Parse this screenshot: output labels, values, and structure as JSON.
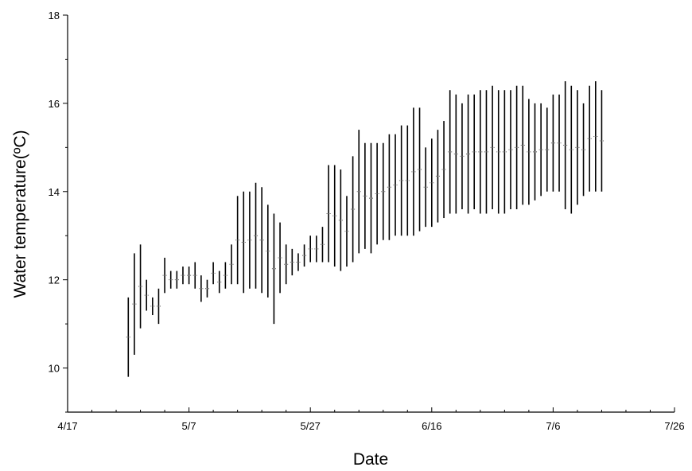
{
  "chart_data": {
    "type": "line",
    "title": "",
    "xlabel": "Date",
    "ylabel": "Water temperature(ºC)",
    "xlim": [
      "4/17",
      "7/26"
    ],
    "ylim": [
      9,
      18
    ],
    "x_ticks": [
      "4/17",
      "5/7",
      "5/27",
      "6/16",
      "7/6",
      "7/26"
    ],
    "y_ticks": [
      10,
      12,
      14,
      16,
      18
    ],
    "grid": false,
    "legend": "none",
    "line_color": "#000000",
    "series": [
      {
        "x": [
          "4/27",
          "4/28",
          "4/29",
          "4/30",
          "5/1",
          "5/2",
          "5/3",
          "5/4",
          "5/5",
          "5/6",
          "5/7",
          "5/8",
          "5/9",
          "5/10",
          "5/11",
          "5/12",
          "5/13",
          "5/14",
          "5/15",
          "5/16",
          "5/17",
          "5/18",
          "5/19",
          "5/20",
          "5/21",
          "5/22",
          "5/23",
          "5/24",
          "5/25",
          "5/26",
          "5/27",
          "5/28",
          "5/29",
          "5/30",
          "5/31",
          "6/1",
          "6/2",
          "6/3",
          "6/4",
          "6/5",
          "6/6",
          "6/7",
          "6/8",
          "6/9",
          "6/10",
          "6/11",
          "6/12",
          "6/13",
          "6/14",
          "6/15",
          "6/16",
          "6/17",
          "6/18",
          "6/19",
          "6/20",
          "6/21",
          "6/22",
          "6/23",
          "6/24",
          "6/25",
          "6/26",
          "6/27",
          "6/28",
          "6/29",
          "6/30",
          "7/1",
          "7/2",
          "7/3",
          "7/4",
          "7/5",
          "7/6",
          "7/7",
          "7/8",
          "7/9",
          "7/10",
          "7/11",
          "7/12",
          "7/13",
          "7/14"
        ],
        "min": [
          9.8,
          10.3,
          10.9,
          11.3,
          11.2,
          11.0,
          11.7,
          11.8,
          11.8,
          11.9,
          11.9,
          11.8,
          11.5,
          11.6,
          11.9,
          11.7,
          11.8,
          11.9,
          11.9,
          11.7,
          11.8,
          11.8,
          11.7,
          11.6,
          11.0,
          11.7,
          11.9,
          12.1,
          12.2,
          12.3,
          12.4,
          12.4,
          12.4,
          12.4,
          12.3,
          12.2,
          12.3,
          12.4,
          12.6,
          12.7,
          12.6,
          12.8,
          12.9,
          12.9,
          13.0,
          13.0,
          13.0,
          13.0,
          13.1,
          13.2,
          13.2,
          13.3,
          13.4,
          13.5,
          13.5,
          13.6,
          13.5,
          13.6,
          13.5,
          13.5,
          13.6,
          13.5,
          13.5,
          13.6,
          13.6,
          13.7,
          13.7,
          13.8,
          13.9,
          14.0,
          14.0,
          14.0,
          13.6,
          13.5,
          13.7,
          13.9,
          14.0,
          14.0,
          14.0
        ],
        "max": [
          11.6,
          12.6,
          12.8,
          12.0,
          11.6,
          11.8,
          12.5,
          12.2,
          12.2,
          12.3,
          12.3,
          12.4,
          12.1,
          12.0,
          12.4,
          12.2,
          12.4,
          12.8,
          13.9,
          14.0,
          14.0,
          14.2,
          14.1,
          13.7,
          13.5,
          13.3,
          12.8,
          12.7,
          12.6,
          12.8,
          13.0,
          13.0,
          13.2,
          14.6,
          14.6,
          14.5,
          13.9,
          14.8,
          15.4,
          15.1,
          15.1,
          15.1,
          15.1,
          15.3,
          15.3,
          15.5,
          15.5,
          15.9,
          15.9,
          15.0,
          15.2,
          15.4,
          15.6,
          16.3,
          16.2,
          16.0,
          16.2,
          16.2,
          16.3,
          16.3,
          16.4,
          16.3,
          16.3,
          16.3,
          16.4,
          16.4,
          16.1,
          16.0,
          16.0,
          15.9,
          16.2,
          16.2,
          16.5,
          16.4,
          16.3,
          16.0,
          16.4,
          16.5,
          16.3
        ]
      }
    ]
  }
}
